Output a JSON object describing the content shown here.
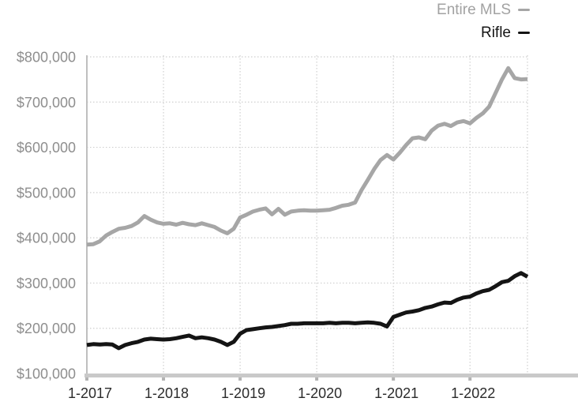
{
  "legend": {
    "items": [
      {
        "label": "Entire MLS",
        "color": "#a6a6a6",
        "text_color": "#a2a2a2"
      },
      {
        "label": "Rifle",
        "color": "#141414",
        "text_color": "#141414"
      }
    ]
  },
  "colors": {
    "gridline": "#cfcfcf",
    "y_axis_line": "#bfbfbf",
    "x_axis_line": "#c9c9c9",
    "tick_mark": "#b3b3b3",
    "y_label_text": "#8e8e8e",
    "x_label_text": "#2b2b2b",
    "series_entire_mls": "#a6a6a6",
    "series_rifle": "#141414"
  },
  "chart_data": {
    "type": "line",
    "title": "",
    "xlabel": "",
    "ylabel": "",
    "x_unit": "month",
    "x_start": "2017-01",
    "x_end": "2022-10",
    "points_per_series": 70,
    "x_tick_labels": [
      "1-2017",
      "1-2018",
      "1-2019",
      "1-2020",
      "1-2021",
      "1-2022"
    ],
    "x_tick_month_indexes": [
      0,
      12,
      24,
      36,
      48,
      60
    ],
    "y_tick_labels": [
      "$100,000",
      "$200,000",
      "$300,000",
      "$400,000",
      "$500,000",
      "$600,000",
      "$700,000",
      "$800,000"
    ],
    "y_tick_values": [
      100000,
      200000,
      300000,
      400000,
      500000,
      600000,
      700000,
      800000
    ],
    "ylim": [
      100000,
      800000
    ],
    "grid": "dotted",
    "legend_position": "top-right",
    "series": [
      {
        "name": "Entire MLS",
        "color": "#a6a6a6",
        "values": [
          385000,
          386000,
          392000,
          405000,
          413000,
          420000,
          422000,
          426000,
          434000,
          448000,
          440000,
          434000,
          431000,
          432000,
          429000,
          433000,
          430000,
          428000,
          432000,
          428000,
          424000,
          416000,
          410000,
          420000,
          445000,
          451000,
          458000,
          462000,
          465000,
          452000,
          464000,
          451000,
          458000,
          460000,
          461000,
          460000,
          460000,
          461000,
          462000,
          466000,
          471000,
          473000,
          478000,
          505000,
          528000,
          552000,
          572000,
          583000,
          573000,
          588000,
          605000,
          620000,
          622000,
          618000,
          637000,
          648000,
          652000,
          647000,
          655000,
          658000,
          653000,
          665000,
          675000,
          690000,
          720000,
          750000,
          775000,
          753000,
          750000,
          751000
        ]
      },
      {
        "name": "Rifle",
        "color": "#141414",
        "values": [
          163000,
          165000,
          164000,
          165000,
          164000,
          156000,
          163000,
          167000,
          170000,
          175000,
          177000,
          176000,
          175000,
          176000,
          178000,
          181000,
          184000,
          178000,
          180000,
          178000,
          175000,
          170000,
          163000,
          170000,
          188000,
          196000,
          198000,
          200000,
          202000,
          203000,
          205000,
          207000,
          210000,
          210000,
          211000,
          211000,
          211000,
          211000,
          212000,
          211000,
          212000,
          212000,
          211000,
          212000,
          213000,
          212000,
          210000,
          204000,
          225000,
          230000,
          235000,
          237000,
          240000,
          245000,
          248000,
          253000,
          257000,
          256000,
          263000,
          268000,
          270000,
          277000,
          282000,
          285000,
          293000,
          302000,
          305000,
          315000,
          322000,
          314000
        ]
      }
    ]
  }
}
